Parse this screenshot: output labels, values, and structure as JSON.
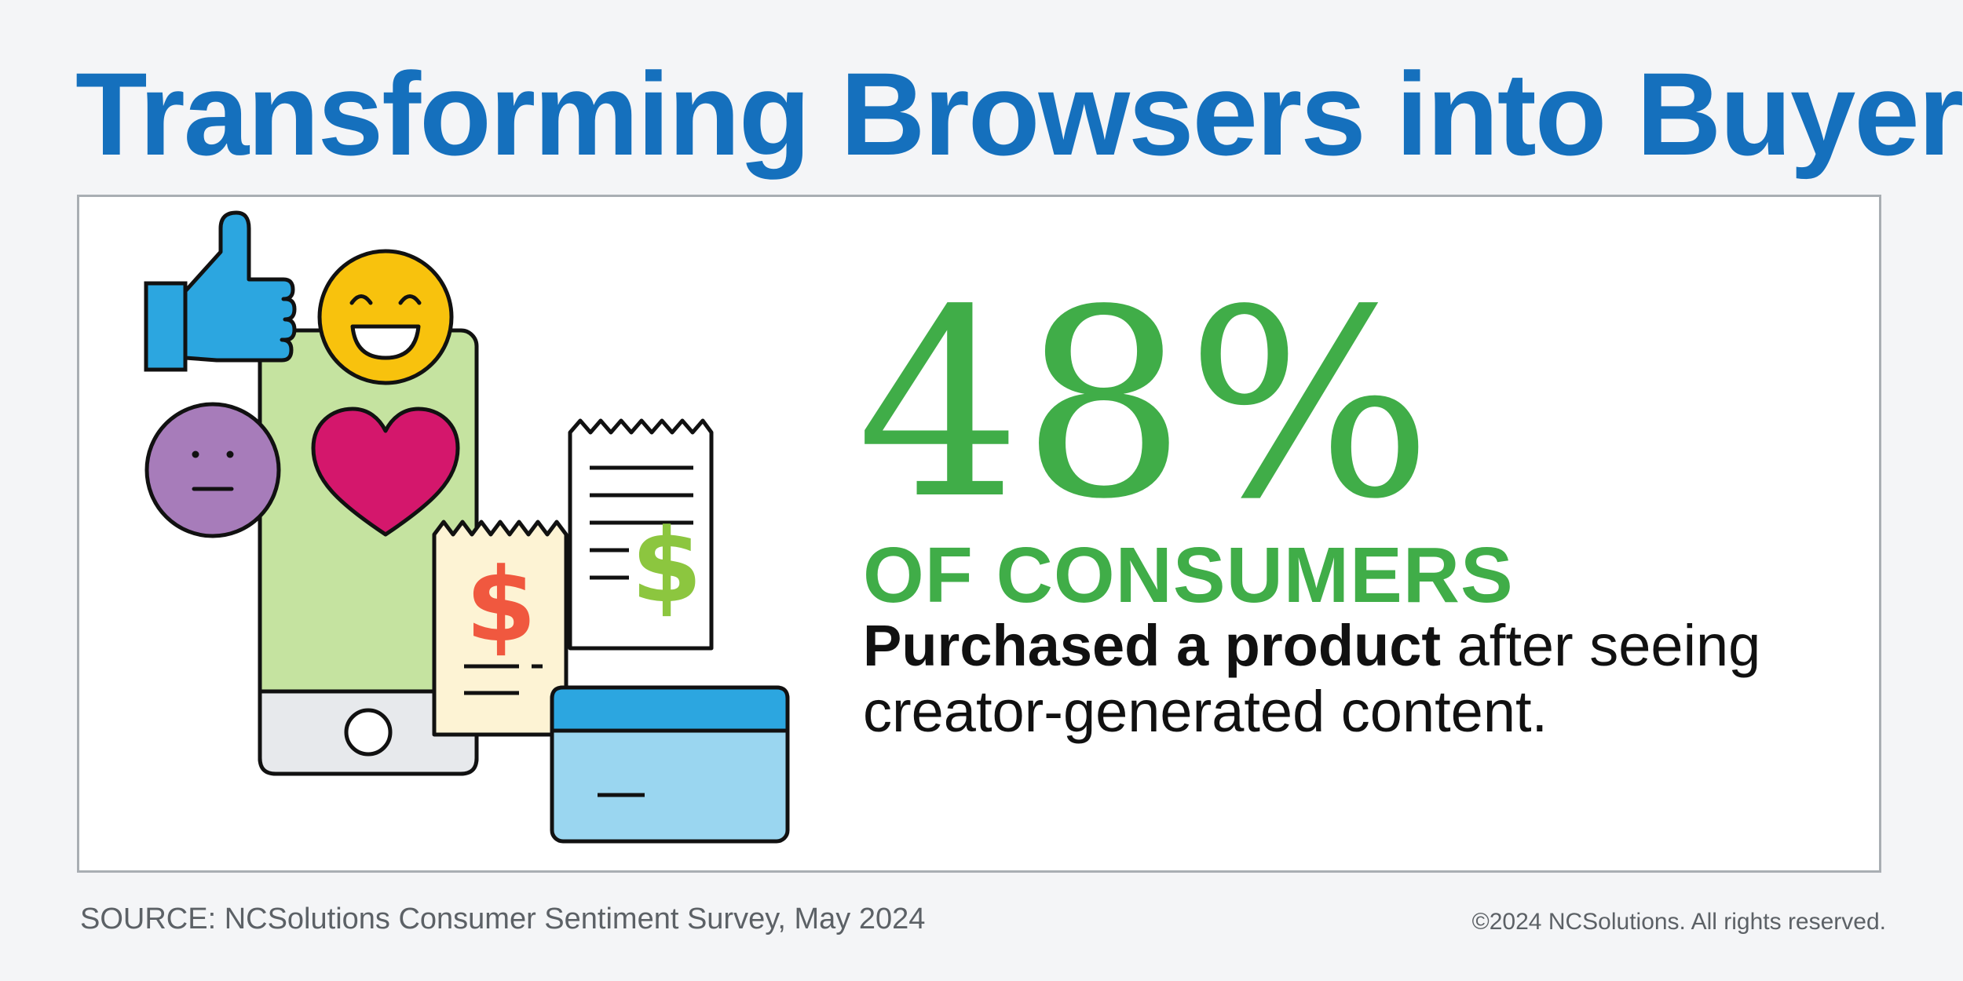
{
  "header": {
    "title": "Transforming Browsers into Buyers"
  },
  "stat": {
    "value": "48%",
    "subject": "OF CONSUMERS",
    "description_bold": "Purchased a product",
    "description_rest": " after seeing creator-generated content."
  },
  "footer": {
    "source": "SOURCE: NCSolutions Consumer Sentiment Survey, May 2024",
    "copyright": "©2024 NCSolutions. All rights reserved."
  },
  "colors": {
    "title_blue": "#1570bd",
    "stat_green": "#40ad48",
    "phone_green": "#c5e3a0",
    "thumb_blue": "#2ca6e0",
    "emoji_yellow": "#f8c20d",
    "emoji_purple": "#a77cba",
    "heart_pink": "#d4176c",
    "receipt_cream": "#fdf3d4",
    "dollar_red": "#f0583f",
    "dollar_green": "#8cc63f",
    "card_light_blue": "#9ad6f0"
  },
  "icons": [
    "thumbs-up-icon",
    "smiley-face-icon",
    "neutral-face-icon",
    "heart-icon",
    "smartphone-icon",
    "receipt-icon",
    "dollar-sign-icon",
    "credit-card-icon"
  ]
}
